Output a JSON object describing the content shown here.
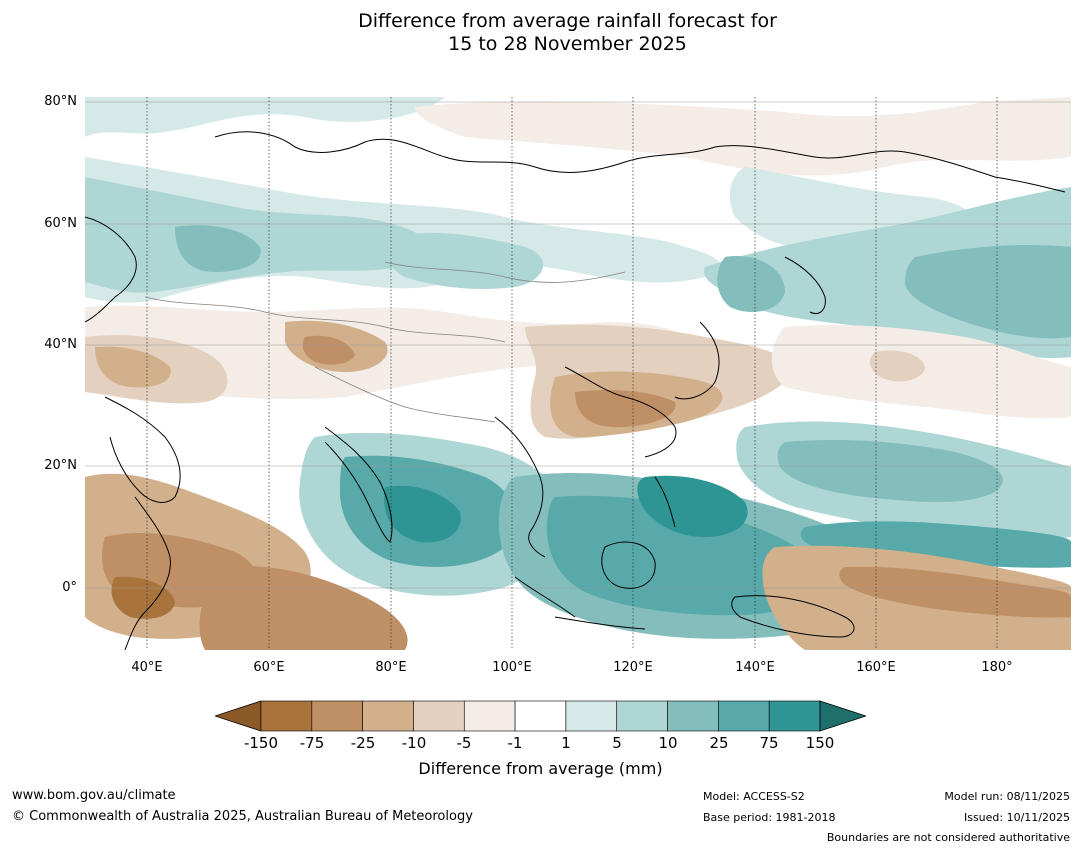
{
  "title": {
    "line1": "Difference from average rainfall forecast for",
    "line2": "15 to 28 November 2025"
  },
  "axes": {
    "y_labels": [
      "80°N",
      "60°N",
      "40°N",
      "20°N",
      "0°"
    ],
    "x_labels": [
      "40°E",
      "60°E",
      "80°E",
      "100°E",
      "120°E",
      "140°E",
      "160°E",
      "180°"
    ],
    "lon_range": [
      30,
      192
    ],
    "lat_range": [
      -10,
      81
    ]
  },
  "legend": {
    "title": "Difference from average (mm)",
    "ticks": [
      "-150",
      "-75",
      "-25",
      "-10",
      "-5",
      "-1",
      "1",
      "5",
      "10",
      "25",
      "75",
      "150"
    ],
    "colors": [
      "#8c5a26",
      "#a8743c",
      "#bf9066",
      "#d2b08c",
      "#e3d0be",
      "#f4ece6",
      "#ffffff",
      "#d5e9e8",
      "#aed6d5",
      "#83bebd",
      "#58a9a9",
      "#2e9594",
      "#1f6f6d"
    ]
  },
  "footer": {
    "url": "www.bom.gov.au/climate",
    "copyright": "© Commonwealth of Australia 2025, Australian Bureau of Meteorology",
    "model": "Model: ACCESS-S2",
    "base_period": "Base period: 1981-2018",
    "model_run": "Model run: 08/11/2025",
    "issued": "Issued: 10/11/2025",
    "disclaimer": "Boundaries are not considered authoritative"
  }
}
